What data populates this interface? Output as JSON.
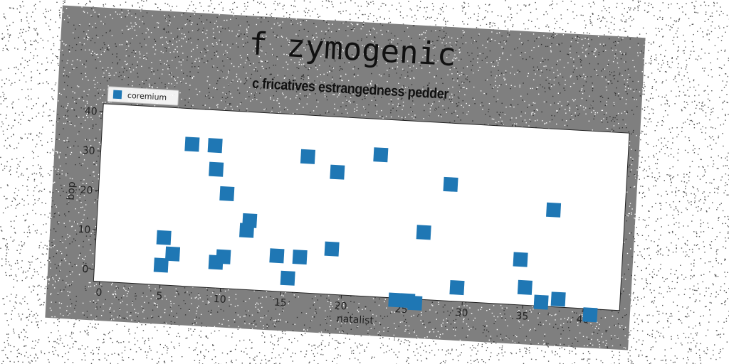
{
  "chart_data": {
    "type": "scatter",
    "title": "f zymogenic",
    "subtitle": "c fricatives estrangedness pedder",
    "xlabel": "natalist",
    "ylabel": "bop",
    "xlim": [
      -0.5,
      43
    ],
    "ylim": [
      -3,
      42
    ],
    "xticks": [
      0,
      5,
      10,
      15,
      20,
      25,
      30,
      35,
      40
    ],
    "yticks": [
      0,
      10,
      20,
      30,
      40
    ],
    "grid": false,
    "legend_position": "top-left",
    "series": [
      {
        "name": "coremium",
        "color": "#1f77b4",
        "marker": "square",
        "points": [
          {
            "x": 5.0,
            "y": 2.0
          },
          {
            "x": 5.1,
            "y": 9.0
          },
          {
            "x": 5.9,
            "y": 5.0
          },
          {
            "x": 7.0,
            "y": 33.0
          },
          {
            "x": 8.9,
            "y": 33.0
          },
          {
            "x": 9.1,
            "y": 27.0
          },
          {
            "x": 9.5,
            "y": 3.5
          },
          {
            "x": 10.1,
            "y": 5.0
          },
          {
            "x": 10.1,
            "y": 21.0
          },
          {
            "x": 11.9,
            "y": 12.0
          },
          {
            "x": 12.1,
            "y": 14.5
          },
          {
            "x": 14.5,
            "y": 6.0
          },
          {
            "x": 15.5,
            "y": 0.5
          },
          {
            "x": 16.4,
            "y": 6.0
          },
          {
            "x": 16.6,
            "y": 31.5
          },
          {
            "x": 19.0,
            "y": 8.5
          },
          {
            "x": 19.1,
            "y": 28.0
          },
          {
            "x": 22.6,
            "y": 33.0
          },
          {
            "x": 24.5,
            "y": -3.5
          },
          {
            "x": 25.5,
            "y": -3.5
          },
          {
            "x": 26.1,
            "y": -4.0
          },
          {
            "x": 26.5,
            "y": 14.0
          },
          {
            "x": 28.5,
            "y": 26.5
          },
          {
            "x": 29.5,
            "y": 0.5
          },
          {
            "x": 34.6,
            "y": 8.5
          },
          {
            "x": 35.1,
            "y": 1.5
          },
          {
            "x": 36.5,
            "y": -2.0
          },
          {
            "x": 37.1,
            "y": 21.5
          },
          {
            "x": 37.9,
            "y": -1.0
          },
          {
            "x": 40.6,
            "y": -4.5
          }
        ]
      }
    ]
  }
}
